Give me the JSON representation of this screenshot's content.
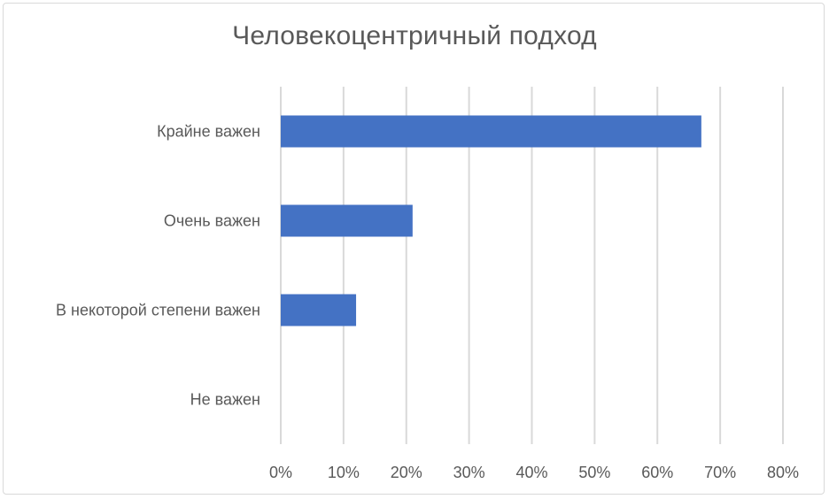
{
  "chart_data": {
    "type": "bar",
    "orientation": "horizontal",
    "title": "Человекоцентричный подход",
    "categories": [
      "Крайне важен",
      "Очень важен",
      "В некоторой степени важен",
      "Не важен"
    ],
    "values": [
      67,
      21,
      12,
      0
    ],
    "unit": "%",
    "xlim": [
      0,
      80
    ],
    "xticks": [
      "0%",
      "10%",
      "20%",
      "30%",
      "40%",
      "50%",
      "60%",
      "70%",
      "80%"
    ],
    "grid": "vertical",
    "legend": "none",
    "bar_color": "#4472c4",
    "grid_color": "#d9d9d9"
  }
}
